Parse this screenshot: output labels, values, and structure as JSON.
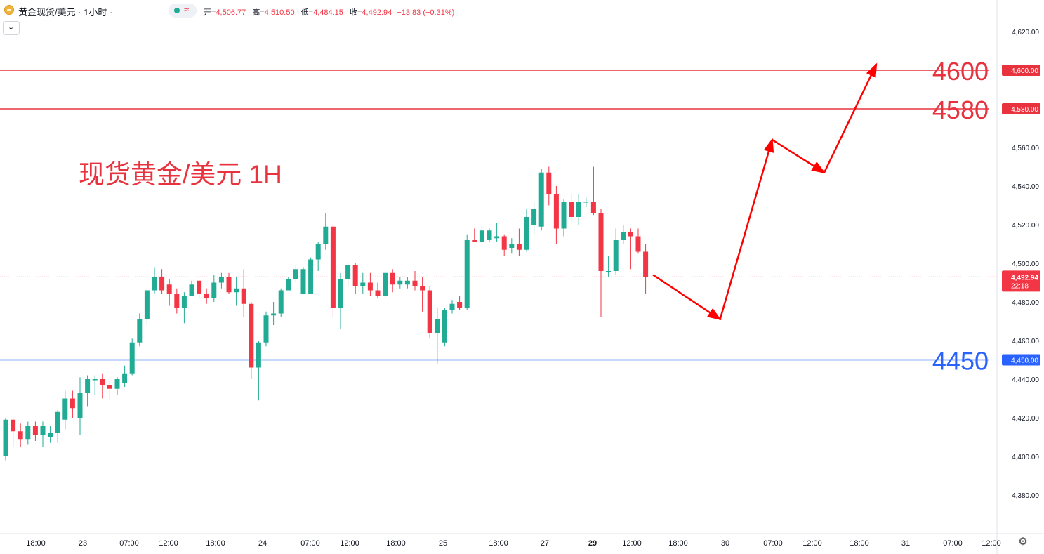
{
  "header": {
    "symbol_title": "黄金现货/美元 · 1小时 ·",
    "status_icon": "wave-icon",
    "ohlc": {
      "open_label": "开=",
      "open": "4,506.77",
      "high_label": "高=",
      "high": "4,510.50",
      "low_label": "低=",
      "low": "4,484.15",
      "close_label": "收=",
      "close": "4,492.94",
      "change": "−13.83 (−0.31%)"
    }
  },
  "annotation_title": "现货黄金/美元 1H",
  "price_axis": {
    "ticks": [
      "4,620.00",
      "4,600.00",
      "4,580.00",
      "4,560.00",
      "4,540.00",
      "4,520.00",
      "4,500.00",
      "4,480.00",
      "4,460.00",
      "4,440.00",
      "4,420.00",
      "4,400.00",
      "4,380.00"
    ],
    "current_price": "4,492.94",
    "countdown": "22:18"
  },
  "time_axis": {
    "labels": [
      "18:00",
      "23",
      "07:00",
      "12:00",
      "18:00",
      "24",
      "07:00",
      "12:00",
      "18:00",
      "25",
      "18:00",
      "27",
      "29",
      "12:00",
      "18:00",
      "30",
      "07:00",
      "12:00",
      "18:00",
      "31",
      "07:00",
      "12:00"
    ]
  },
  "colors": {
    "up": "#22ab94",
    "down": "#f23645",
    "resistance": "#e8333f",
    "support": "#2962ff",
    "arrow": "#ff0000"
  },
  "chart_data": {
    "type": "candlestick",
    "y_range": [
      4370,
      4628
    ],
    "candles": [
      {
        "o": 4400,
        "h": 4420,
        "l": 4398,
        "c": 4419
      },
      {
        "o": 4419,
        "h": 4420,
        "l": 4405,
        "c": 4413
      },
      {
        "o": 4413,
        "h": 4417,
        "l": 4405,
        "c": 4409
      },
      {
        "o": 4409,
        "h": 4418,
        "l": 4406,
        "c": 4416
      },
      {
        "o": 4416,
        "h": 4418,
        "l": 4408,
        "c": 4411
      },
      {
        "o": 4411,
        "h": 4418,
        "l": 4405,
        "c": 4416
      },
      {
        "o": 4410,
        "h": 4416,
        "l": 4407,
        "c": 4412
      },
      {
        "o": 4412,
        "h": 4424,
        "l": 4407,
        "c": 4423
      },
      {
        "o": 4419,
        "h": 4434,
        "l": 4414,
        "c": 4430
      },
      {
        "o": 4430,
        "h": 4434,
        "l": 4420,
        "c": 4425
      },
      {
        "o": 4420,
        "h": 4441,
        "l": 4411,
        "c": 4433
      },
      {
        "o": 4433,
        "h": 4442,
        "l": 4426,
        "c": 4440
      },
      {
        "o": 4440,
        "h": 4442,
        "l": 4432,
        "c": 4440
      },
      {
        "o": 4440,
        "h": 4443,
        "l": 4430,
        "c": 4437
      },
      {
        "o": 4437,
        "h": 4439,
        "l": 4429,
        "c": 4435
      },
      {
        "o": 4435,
        "h": 4441,
        "l": 4432,
        "c": 4440
      },
      {
        "o": 4438,
        "h": 4447,
        "l": 4436,
        "c": 4443
      },
      {
        "o": 4443,
        "h": 4461,
        "l": 4442,
        "c": 4459
      },
      {
        "o": 4459,
        "h": 4474,
        "l": 4457,
        "c": 4471
      },
      {
        "o": 4471,
        "h": 4487,
        "l": 4468,
        "c": 4486
      },
      {
        "o": 4486,
        "h": 4498,
        "l": 4484,
        "c": 4493
      },
      {
        "o": 4493,
        "h": 4497,
        "l": 4484,
        "c": 4486
      },
      {
        "o": 4489,
        "h": 4492,
        "l": 4478,
        "c": 4484
      },
      {
        "o": 4484,
        "h": 4487,
        "l": 4474,
        "c": 4477
      },
      {
        "o": 4477,
        "h": 4485,
        "l": 4469,
        "c": 4483
      },
      {
        "o": 4483,
        "h": 4491,
        "l": 4483,
        "c": 4489
      },
      {
        "o": 4491,
        "h": 4490,
        "l": 4482,
        "c": 4484
      },
      {
        "o": 4484,
        "h": 4487,
        "l": 4479,
        "c": 4482
      },
      {
        "o": 4482,
        "h": 4494,
        "l": 4480,
        "c": 4490
      },
      {
        "o": 4490,
        "h": 4495,
        "l": 4487,
        "c": 4493
      },
      {
        "o": 4493,
        "h": 4495,
        "l": 4484,
        "c": 4485
      },
      {
        "o": 4485,
        "h": 4493,
        "l": 4478,
        "c": 4487
      },
      {
        "o": 4487,
        "h": 4497,
        "l": 4472,
        "c": 4479
      },
      {
        "o": 4479,
        "h": 4480,
        "l": 4440,
        "c": 4446
      },
      {
        "o": 4446,
        "h": 4460,
        "l": 4429,
        "c": 4459
      },
      {
        "o": 4459,
        "h": 4475,
        "l": 4457,
        "c": 4473
      },
      {
        "o": 4473,
        "h": 4480,
        "l": 4468,
        "c": 4474
      },
      {
        "o": 4474,
        "h": 4487,
        "l": 4472,
        "c": 4486
      },
      {
        "o": 4486,
        "h": 4493,
        "l": 4486,
        "c": 4492
      },
      {
        "o": 4492,
        "h": 4499,
        "l": 4490,
        "c": 4497
      },
      {
        "o": 4484,
        "h": 4498,
        "l": 4484,
        "c": 4497
      },
      {
        "o": 4484,
        "h": 4503,
        "l": 4484,
        "c": 4502
      },
      {
        "o": 4502,
        "h": 4511,
        "l": 4496,
        "c": 4510
      },
      {
        "o": 4510,
        "h": 4526,
        "l": 4507,
        "c": 4519
      },
      {
        "o": 4519,
        "h": 4520,
        "l": 4472,
        "c": 4477
      },
      {
        "o": 4477,
        "h": 4495,
        "l": 4466,
        "c": 4492
      },
      {
        "o": 4492,
        "h": 4500,
        "l": 4488,
        "c": 4499
      },
      {
        "o": 4499,
        "h": 4500,
        "l": 4484,
        "c": 4488
      },
      {
        "o": 4488,
        "h": 4495,
        "l": 4484,
        "c": 4490
      },
      {
        "o": 4490,
        "h": 4495,
        "l": 4483,
        "c": 4486
      },
      {
        "o": 4486,
        "h": 4490,
        "l": 4482,
        "c": 4483
      },
      {
        "o": 4483,
        "h": 4496,
        "l": 4482,
        "c": 4495
      },
      {
        "o": 4495,
        "h": 4497,
        "l": 4485,
        "c": 4489
      },
      {
        "o": 4489,
        "h": 4493,
        "l": 4487,
        "c": 4491
      },
      {
        "o": 4489,
        "h": 4493,
        "l": 4487,
        "c": 4491
      },
      {
        "o": 4491,
        "h": 4496,
        "l": 4486,
        "c": 4488
      },
      {
        "o": 4488,
        "h": 4493,
        "l": 4475,
        "c": 4486
      },
      {
        "o": 4486,
        "h": 4488,
        "l": 4461,
        "c": 4464
      },
      {
        "o": 4464,
        "h": 4477,
        "l": 4448,
        "c": 4471
      },
      {
        "o": 4459,
        "h": 4477,
        "l": 4457,
        "c": 4476
      },
      {
        "o": 4476,
        "h": 4481,
        "l": 4474,
        "c": 4479
      },
      {
        "o": 4480,
        "h": 4483,
        "l": 4476,
        "c": 4477
      },
      {
        "o": 4477,
        "h": 4515,
        "l": 4476,
        "c": 4512
      },
      {
        "o": 4512,
        "h": 4518,
        "l": 4511,
        "c": 4511
      },
      {
        "o": 4511,
        "h": 4519,
        "l": 4510,
        "c": 4517
      },
      {
        "o": 4512,
        "h": 4518,
        "l": 4511,
        "c": 4517
      },
      {
        "o": 4513,
        "h": 4521,
        "l": 4511,
        "c": 4514
      },
      {
        "o": 4514,
        "h": 4515,
        "l": 4504,
        "c": 4507
      },
      {
        "o": 4508,
        "h": 4513,
        "l": 4505,
        "c": 4510
      },
      {
        "o": 4510,
        "h": 4518,
        "l": 4504,
        "c": 4507
      },
      {
        "o": 4507,
        "h": 4528,
        "l": 4506,
        "c": 4524
      },
      {
        "o": 4520,
        "h": 4532,
        "l": 4515,
        "c": 4528
      },
      {
        "o": 4519,
        "h": 4549,
        "l": 4517,
        "c": 4547
      },
      {
        "o": 4547,
        "h": 4550,
        "l": 4530,
        "c": 4536
      },
      {
        "o": 4536,
        "h": 4540,
        "l": 4510,
        "c": 4518
      },
      {
        "o": 4518,
        "h": 4533,
        "l": 4514,
        "c": 4532
      },
      {
        "o": 4532,
        "h": 4536,
        "l": 4522,
        "c": 4524
      },
      {
        "o": 4524,
        "h": 4536,
        "l": 4520,
        "c": 4532
      },
      {
        "o": 4532,
        "h": 4534,
        "l": 4529,
        "c": 4532
      },
      {
        "o": 4532,
        "h": 4550,
        "l": 4525,
        "c": 4526
      },
      {
        "o": 4526,
        "h": 4528,
        "l": 4472,
        "c": 4496
      },
      {
        "o": 4496,
        "h": 4504,
        "l": 4493,
        "c": 4496
      },
      {
        "o": 4496,
        "h": 4518,
        "l": 4494,
        "c": 4512
      },
      {
        "o": 4512,
        "h": 4520,
        "l": 4510,
        "c": 4516
      },
      {
        "o": 4516,
        "h": 4518,
        "l": 4497,
        "c": 4514
      },
      {
        "o": 4514,
        "h": 4518,
        "l": 4505,
        "c": 4506
      },
      {
        "o": 4506,
        "h": 4510,
        "l": 4484,
        "c": 4493
      }
    ],
    "horizontal_levels": [
      {
        "value": 4600,
        "label": "4600",
        "axis_label": "4,600.00",
        "kind": "resistance"
      },
      {
        "value": 4580,
        "label": "4580",
        "axis_label": "4,580.00",
        "kind": "resistance"
      },
      {
        "value": 4450,
        "label": "4450",
        "axis_label": "4,450.00",
        "kind": "support"
      }
    ],
    "forecast_path": [
      {
        "bar": 87,
        "price": 4494
      },
      {
        "bar": 96,
        "price": 4471
      },
      {
        "bar": 103,
        "price": 4564
      },
      {
        "bar": 110,
        "price": 4547
      },
      {
        "bar": 117,
        "price": 4603
      }
    ]
  }
}
